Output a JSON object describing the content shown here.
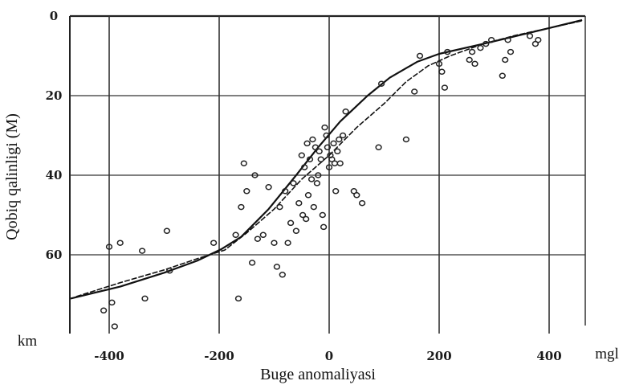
{
  "chart_data": {
    "type": "scatter",
    "xlabel": "Buge anomaliyasi",
    "ylabel": "Qobiq qalinligi (M)",
    "x_unit": "mgl",
    "y_unit": "km",
    "xlim": [
      -480,
      470
    ],
    "ylim": [
      0,
      80
    ],
    "y_inverted": true,
    "x_ticks": [
      -400,
      -200,
      0,
      200,
      400
    ],
    "x_tick_labels": [
      "-400",
      "-200",
      "0",
      "200",
      "400"
    ],
    "y_ticks": [
      0,
      20,
      40,
      60
    ],
    "y_tick_labels": [
      "0",
      "20",
      "40",
      "60"
    ],
    "grid": true,
    "series": [
      {
        "kind": "points",
        "marker": "open-circle",
        "x": [
          -410,
          -400,
          -395,
          -390,
          -380,
          -340,
          -335,
          -295,
          -290,
          -210,
          -170,
          -165,
          -160,
          -155,
          -150,
          -140,
          -135,
          -130,
          -120,
          -110,
          -100,
          -95,
          -90,
          -85,
          -80,
          -75,
          -70,
          -65,
          -60,
          -55,
          -50,
          -48,
          -45,
          -42,
          -40,
          -38,
          -35,
          -32,
          -30,
          -28,
          -25,
          -22,
          -20,
          -18,
          -15,
          -12,
          -10,
          -8,
          -5,
          -3,
          0,
          2,
          5,
          8,
          10,
          12,
          15,
          18,
          20,
          25,
          30,
          45,
          50,
          60,
          90,
          95,
          140,
          155,
          165,
          200,
          205,
          210,
          215,
          255,
          260,
          265,
          275,
          285,
          295,
          315,
          320,
          325,
          330,
          365,
          375,
          380
        ],
        "y": [
          74,
          58,
          72,
          78,
          57,
          59,
          71,
          54,
          64,
          57,
          55,
          71,
          48,
          37,
          44,
          62,
          40,
          56,
          55,
          43,
          57,
          63,
          48,
          65,
          44,
          57,
          52,
          42,
          54,
          47,
          35,
          50,
          38,
          51,
          32,
          45,
          36,
          41,
          31,
          48,
          33,
          42,
          40,
          34,
          36,
          50,
          53,
          28,
          30,
          33,
          38,
          35,
          36,
          32,
          37,
          44,
          34,
          31,
          37,
          30,
          24,
          44,
          45,
          47,
          33,
          17,
          31,
          19,
          10,
          12,
          14,
          18,
          9,
          11,
          9,
          12,
          8,
          7,
          6,
          15,
          11,
          6,
          9,
          5,
          7,
          6
        ]
      },
      {
        "kind": "curve",
        "style": "solid",
        "x": [
          -470,
          -380,
          -300,
          -240,
          -195,
          -160,
          -110,
          -60,
          -20,
          20,
          70,
          110,
          160,
          200,
          280,
          340,
          400,
          460
        ],
        "y": [
          71,
          68,
          64.5,
          61.5,
          58.5,
          55.5,
          48.5,
          40,
          33,
          26.5,
          20,
          15.5,
          11.5,
          9.5,
          7,
          5,
          3,
          1
        ]
      },
      {
        "kind": "curve",
        "style": "dashed",
        "x": [
          -460,
          -380,
          -300,
          -240,
          -190,
          -150,
          -100,
          -50,
          0,
          50,
          100,
          140,
          180,
          220,
          280,
          340,
          400,
          460
        ],
        "y": [
          70.5,
          67,
          63.8,
          61,
          58.8,
          54.5,
          48.5,
          41,
          35,
          28,
          22,
          16.5,
          12.5,
          10,
          7,
          4.8,
          3,
          1.2
        ]
      }
    ]
  }
}
